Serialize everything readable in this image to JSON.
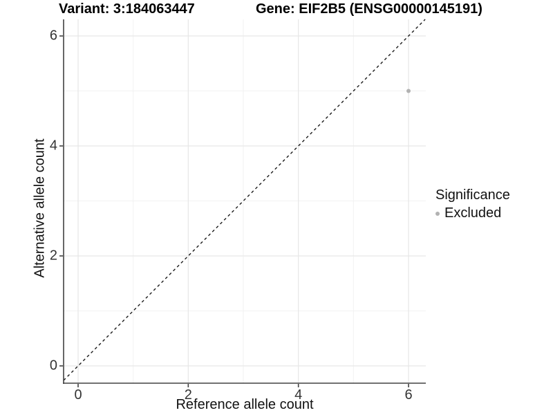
{
  "titles": {
    "left": "Variant: 3:184063447",
    "right": "Gene: EIF2B5 (ENSG00000145191)"
  },
  "chart_data": {
    "type": "scatter",
    "title_left": "Variant: 3:184063447",
    "title_right": "Gene: EIF2B5 (ENSG00000145191)",
    "xlabel": "Reference allele count",
    "ylabel": "Alternative allele count",
    "xlim": [
      -0.3,
      6.3
    ],
    "ylim": [
      -0.3,
      6.3
    ],
    "x_ticks": [
      0,
      2,
      4,
      6
    ],
    "y_ticks": [
      0,
      2,
      4,
      6
    ],
    "x_minor_ticks": [
      1,
      3,
      5
    ],
    "y_minor_ticks": [
      1,
      3,
      5
    ],
    "grid": true,
    "points": [
      {
        "x": 6,
        "y": 5,
        "series": "Excluded"
      }
    ],
    "identity_line": {
      "slope": 1,
      "intercept": 0,
      "style": "dashed"
    },
    "legend": {
      "title": "Significance",
      "position": "right",
      "items": [
        {
          "label": "Excluded",
          "color": "#b2b2b2"
        }
      ]
    }
  },
  "colors": {
    "background": "#ffffff",
    "grid_major": "#e7e7e7",
    "grid_minor": "#f2f2f2",
    "axis_line": "#404040",
    "tick_text": "#333333",
    "identity_line": "#1a1a1a",
    "point": "#b2b2b2"
  }
}
